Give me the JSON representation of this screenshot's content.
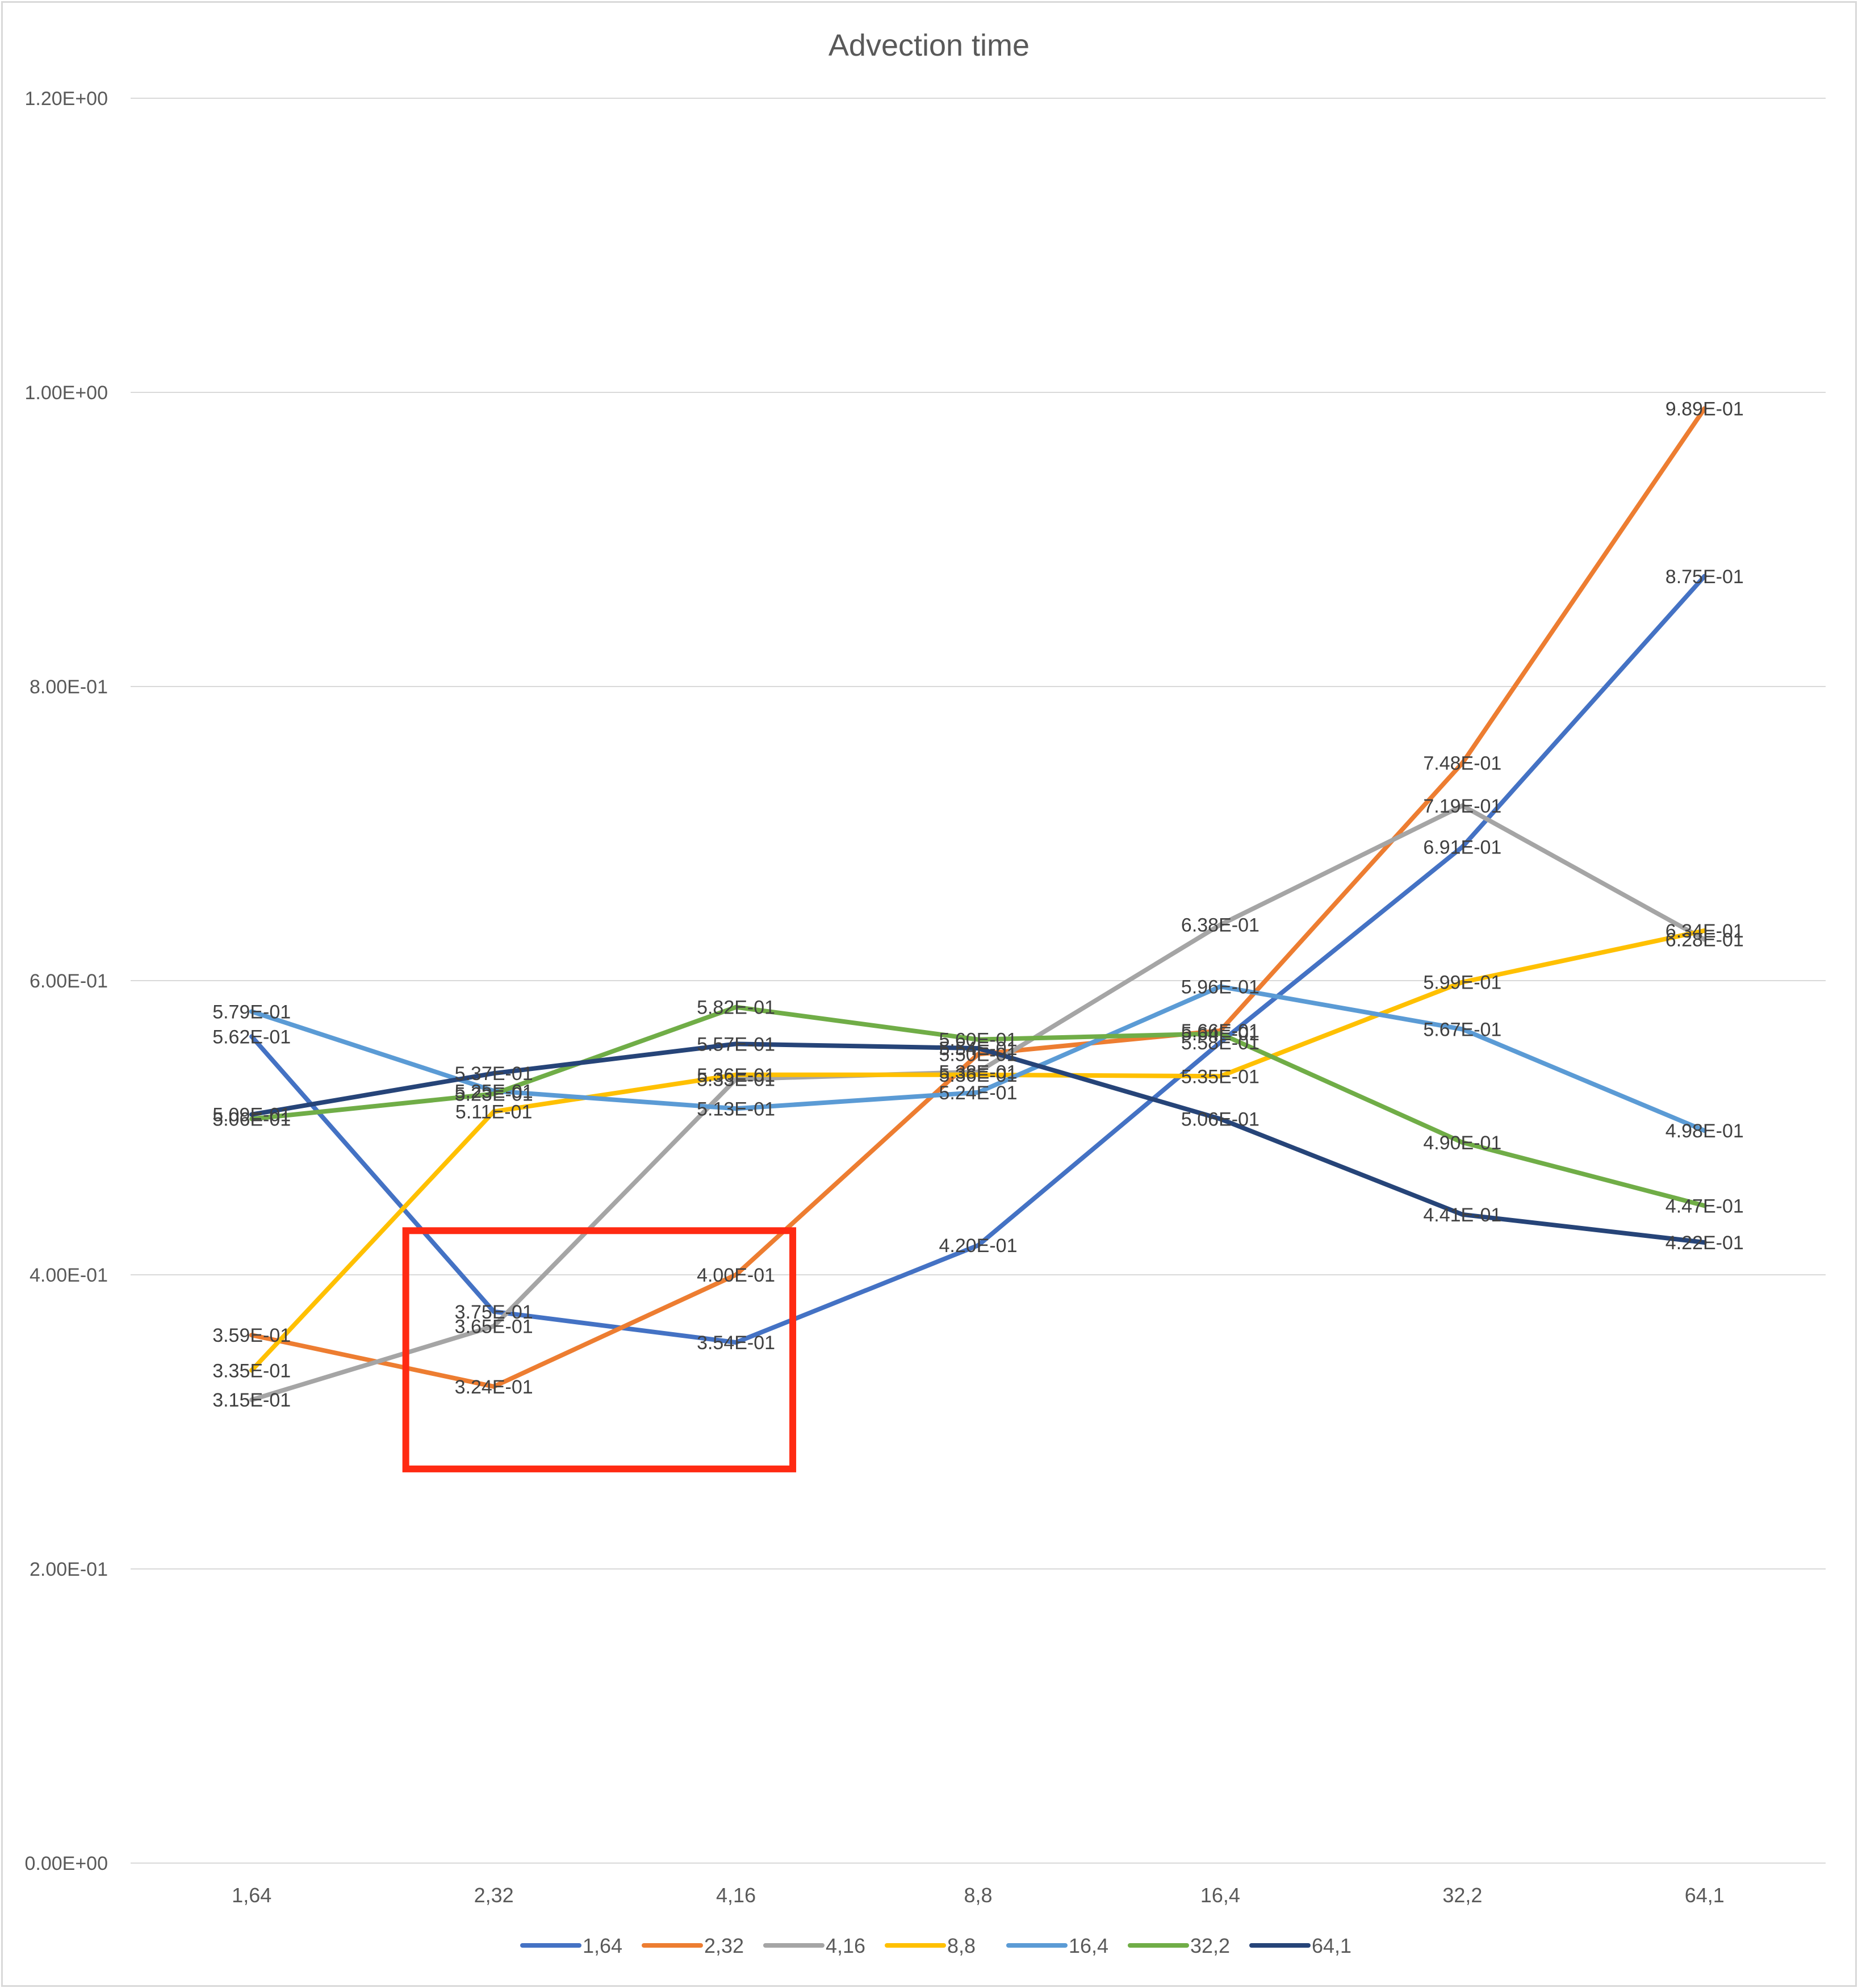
{
  "chart_data": {
    "type": "line",
    "title": "Advection time",
    "xlabel": "",
    "ylabel": "",
    "categories": [
      "1,64",
      "2,32",
      "4,16",
      "8,8",
      "16,4",
      "32,2",
      "64,1"
    ],
    "ylim": [
      0,
      1.2
    ],
    "yticks": [
      {
        "value": 0,
        "label": "0.00E+00"
      },
      {
        "value": 0.2,
        "label": "2.00E-01"
      },
      {
        "value": 0.4,
        "label": "4.00E-01"
      },
      {
        "value": 0.6,
        "label": "6.00E-01"
      },
      {
        "value": 0.8,
        "label": "8.00E-01"
      },
      {
        "value": 1.0,
        "label": "1.00E+00"
      },
      {
        "value": 1.2,
        "label": "1.20E+00"
      }
    ],
    "grid": true,
    "legend_position": "bottom",
    "highlight_box": {
      "x_from": "2,32",
      "x_to": "4,16",
      "y_from": 0.268,
      "y_to": 0.43,
      "color": "#ff2a12"
    },
    "series": [
      {
        "name": "1,64",
        "color": "#4472c4",
        "values": [
          0.562,
          0.375,
          0.354,
          0.42,
          0.558,
          0.691,
          0.875
        ],
        "labels": [
          "5.62E-01",
          "3.75E-01",
          "3.54E-01",
          "4.20E-01",
          "5.58E-01",
          "6.91E-01",
          "8.75E-01"
        ]
      },
      {
        "name": "2,32",
        "color": "#ed7d31",
        "values": [
          0.359,
          0.324,
          0.4,
          0.55,
          0.566,
          0.748,
          0.989
        ],
        "labels": [
          "3.59E-01",
          "3.24E-01",
          "4.00E-01",
          "5.50E-01",
          "5.66E-01",
          "7.48E-01",
          "9.89E-01"
        ]
      },
      {
        "name": "4,16",
        "color": "#a5a5a5",
        "values": [
          0.315,
          0.365,
          0.533,
          0.538,
          0.638,
          0.719,
          0.628
        ],
        "labels": [
          "3.15E-01",
          "3.65E-01",
          "5.33E-01",
          "5.38E-01",
          "6.38E-01",
          "7.19E-01",
          "6.28E-01"
        ]
      },
      {
        "name": "8,8",
        "color": "#ffc000",
        "values": [
          0.335,
          0.511,
          0.536,
          0.536,
          0.535,
          0.599,
          0.634
        ],
        "labels": [
          "3.35E-01",
          "5.11E-01",
          "5.36E-01",
          "5.36E-01",
          "5.35E-01",
          "5.99E-01",
          "6.34E-01"
        ]
      },
      {
        "name": "16,4",
        "color": "#5b9bd5",
        "values": [
          0.579,
          0.525,
          0.513,
          0.524,
          0.596,
          0.567,
          0.498
        ],
        "labels": [
          "5.79E-01",
          "5.25E-01",
          "5.13E-01",
          "5.24E-01",
          "5.96E-01",
          "5.67E-01",
          "4.98E-01"
        ]
      },
      {
        "name": "32,2",
        "color": "#70ad47",
        "values": [
          0.506,
          0.523,
          0.582,
          0.56,
          0.564,
          0.49,
          0.447
        ],
        "labels": [
          "5.06E-01",
          "5.23E-01",
          "5.82E-01",
          "5.60E-01",
          "5.64E-01",
          "4.90E-01",
          "4.47E-01"
        ]
      },
      {
        "name": "64,1",
        "color": "#264478",
        "values": [
          0.509,
          0.537,
          0.557,
          0.554,
          0.506,
          0.441,
          0.422
        ],
        "labels": [
          "5.09E-01",
          "5.37E-01",
          "5.57E-01",
          "5.54E-01",
          "5.06E-01",
          "4.41E-01",
          "4.22E-01"
        ]
      }
    ]
  }
}
